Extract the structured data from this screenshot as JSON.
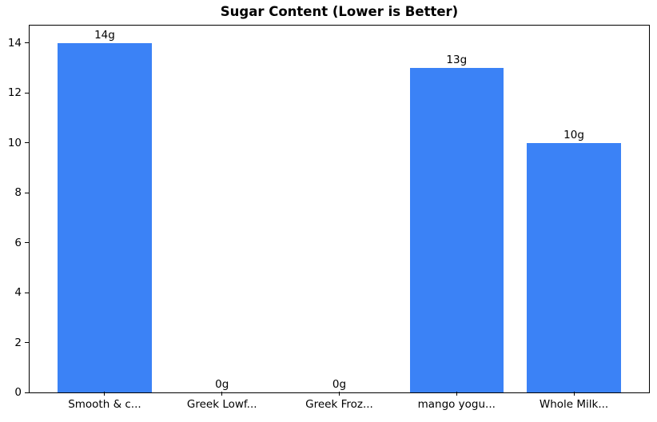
{
  "chart_data": {
    "type": "bar",
    "title": "Sugar Content (Lower is Better)",
    "categories": [
      "Smooth & c...",
      "Greek Lowf...",
      "Greek Froz...",
      "mango yogu...",
      "Whole Milk..."
    ],
    "values": [
      14,
      0,
      0,
      13,
      10
    ],
    "value_labels": [
      "14g",
      "0g",
      "0g",
      "13g",
      "10g"
    ],
    "yticks": [
      0,
      2,
      4,
      6,
      8,
      10,
      12,
      14
    ],
    "ylim": [
      0,
      14.7
    ],
    "xlabel": "",
    "ylabel": "",
    "grid": false,
    "legend": "none",
    "bar_color": "#3b82f6",
    "text_color": "#000000",
    "background_color": "#ffffff"
  }
}
